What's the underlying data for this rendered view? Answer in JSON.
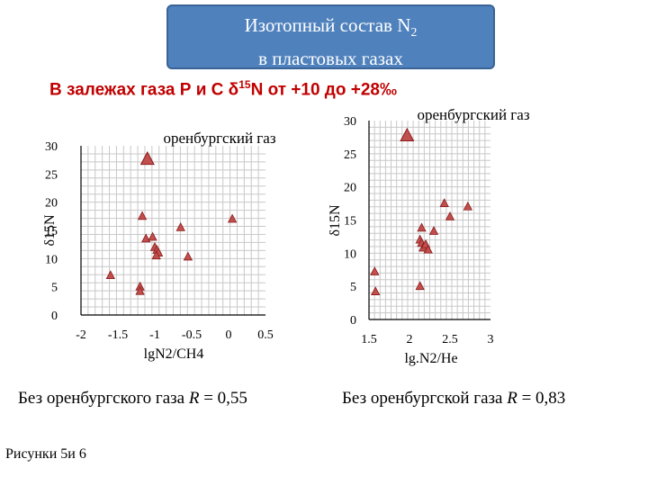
{
  "header": {
    "title_line1_main": "Изотопный состав N",
    "title_line1_sub": "2",
    "title_line2": "в пластовых газах"
  },
  "subtitle": {
    "pre": "В залежах газа Р и С  δ",
    "sup": "15",
    "post": "N от +10 до +28‰"
  },
  "notes": {
    "left_text": "Без оренбургского газа ",
    "left_var": "R",
    "left_val": " = 0,55",
    "right_text": "Без оренбургской газа  ",
    "right_var": "R",
    "right_val": " = 0,83"
  },
  "caption": "Рисунки 5и 6",
  "colors": {
    "title_bg": "#4f81bd",
    "subtitle": "#c00000",
    "marker_fill": "#c0504d",
    "marker_stroke": "#8b1a1a",
    "grid": "#c8c8c8"
  },
  "chart_data": [
    {
      "type": "scatter",
      "title": "оренбургский газ",
      "xlabel": "lgN2/CH4",
      "ylabel": "δ15N",
      "xlim": [
        -2,
        0.5
      ],
      "ylim": [
        0,
        30
      ],
      "xticks": [
        "-2",
        "-1.5",
        "-1",
        "-0.5",
        "0",
        "0.5"
      ],
      "xtick_values": [
        -2,
        -1.5,
        -1,
        -0.5,
        0,
        0.5
      ],
      "yticks": [
        "0",
        "5",
        "10",
        "15",
        "20",
        "25",
        "30"
      ],
      "ytick_values": [
        0,
        5,
        10,
        15,
        20,
        25,
        30
      ],
      "grid": true,
      "points": [
        {
          "x": -1.6,
          "y": 7.0
        },
        {
          "x": -1.2,
          "y": 5.0
        },
        {
          "x": -1.2,
          "y": 4.2
        },
        {
          "x": -1.17,
          "y": 17.5
        },
        {
          "x": -1.12,
          "y": 13.5
        },
        {
          "x": -1.03,
          "y": 13.8
        },
        {
          "x": -1.0,
          "y": 12.0
        },
        {
          "x": -0.97,
          "y": 11.5
        },
        {
          "x": -0.95,
          "y": 11.0
        },
        {
          "x": -0.98,
          "y": 10.5
        },
        {
          "x": -0.65,
          "y": 15.5
        },
        {
          "x": -0.55,
          "y": 10.3
        },
        {
          "x": 0.05,
          "y": 17.0
        }
      ],
      "highlight": {
        "x": -1.1,
        "y": 27.6
      }
    },
    {
      "type": "scatter",
      "title": "оренбургский газ",
      "xlabel": "lg.N2/He",
      "ylabel": "δ15N",
      "xlim": [
        1.5,
        3
      ],
      "ylim": [
        0,
        30
      ],
      "xticks": [
        "1.5",
        "2",
        "2.5",
        "3"
      ],
      "xtick_values": [
        1.5,
        2,
        2.5,
        3
      ],
      "yticks": [
        "0",
        "5",
        "10",
        "15",
        "20",
        "25",
        "30"
      ],
      "ytick_values": [
        0,
        5,
        10,
        15,
        20,
        25,
        30
      ],
      "grid": true,
      "points": [
        {
          "x": 1.57,
          "y": 7.2
        },
        {
          "x": 1.58,
          "y": 4.2
        },
        {
          "x": 2.13,
          "y": 5.0
        },
        {
          "x": 2.13,
          "y": 12.0
        },
        {
          "x": 2.15,
          "y": 13.8
        },
        {
          "x": 2.15,
          "y": 11.5
        },
        {
          "x": 2.17,
          "y": 10.8
        },
        {
          "x": 2.2,
          "y": 11.3
        },
        {
          "x": 2.23,
          "y": 10.5
        },
        {
          "x": 2.3,
          "y": 13.3
        },
        {
          "x": 2.43,
          "y": 17.5
        },
        {
          "x": 2.5,
          "y": 15.5
        },
        {
          "x": 2.72,
          "y": 17.0
        }
      ],
      "highlight": {
        "x": 1.97,
        "y": 27.7
      }
    }
  ]
}
